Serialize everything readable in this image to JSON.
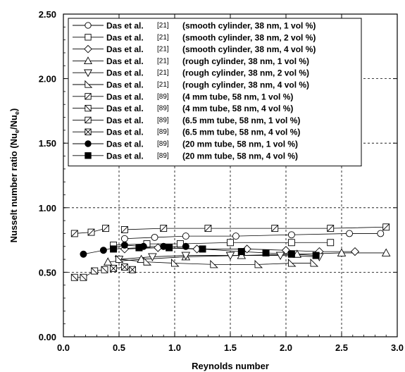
{
  "chart_data": {
    "type": "line",
    "xlabel": "Reynolds number",
    "ylabel": "Nusselt number ratio (Nu",
    "ylabel_sub1": "e",
    "ylabel_mid": "/Nu",
    "ylabel_sub2": "e",
    "ylabel_end": ")",
    "xlim": [
      0.0,
      3.0
    ],
    "ylim": [
      0.0,
      2.5
    ],
    "xticks": [
      "0.0",
      "0.5",
      "1.0",
      "1.5",
      "2.0",
      "2.5",
      "3.0"
    ],
    "yticks": [
      "0.00",
      "0.50",
      "1.00",
      "1.50",
      "2.00",
      "2.50"
    ],
    "grid": true,
    "legend_position": "top",
    "series": [
      {
        "author": "Das et al.",
        "ref": "[21]",
        "desc": "(smooth cylinder, 38 nm, 1 vol %)",
        "marker": "circle-open",
        "x": [
          0.55,
          0.82,
          1.1,
          1.55,
          2.05,
          2.57,
          2.85
        ],
        "y": [
          0.76,
          0.77,
          0.78,
          0.78,
          0.79,
          0.8,
          0.8
        ]
      },
      {
        "author": "Das et al.",
        "ref": "[21]",
        "desc": "(smooth cylinder, 38 nm, 2 vol %)",
        "marker": "square-open",
        "x": [
          0.45,
          0.75,
          1.05,
          1.5,
          2.05,
          2.4
        ],
        "y": [
          0.71,
          0.72,
          0.72,
          0.73,
          0.73,
          0.73
        ]
      },
      {
        "author": "Das et al.",
        "ref": "[21]",
        "desc": "(smooth cylinder, 38 nm, 4 vol %)",
        "marker": "diamond-open",
        "x": [
          0.55,
          0.85,
          1.2,
          1.65,
          2.0,
          2.3,
          2.62
        ],
        "y": [
          0.68,
          0.69,
          0.68,
          0.68,
          0.67,
          0.66,
          0.66
        ]
      },
      {
        "author": "Das et al.",
        "ref": "[21]",
        "desc": "(rough cylinder, 38 nm, 1 vol %)",
        "marker": "triangle-up-open",
        "x": [
          0.4,
          0.7,
          1.1,
          1.6,
          2.1,
          2.5,
          2.9
        ],
        "y": [
          0.58,
          0.6,
          0.62,
          0.63,
          0.64,
          0.65,
          0.65
        ]
      },
      {
        "author": "Das et al.",
        "ref": "[21]",
        "desc": "(rough cylinder, 38 nm, 2 vol %)",
        "marker": "triangle-down-open",
        "x": [
          0.5,
          0.8,
          1.1,
          1.5,
          1.95,
          2.3
        ],
        "y": [
          0.6,
          0.62,
          0.63,
          0.63,
          0.63,
          0.62
        ]
      },
      {
        "author": "Das et al.",
        "ref": "[21]",
        "desc": "(rough cylinder, 38 nm, 4 vol %)",
        "marker": "triangle-right-open",
        "x": [
          0.5,
          0.75,
          1.0,
          1.35,
          1.75,
          2.05,
          2.25
        ],
        "y": [
          0.6,
          0.58,
          0.57,
          0.56,
          0.56,
          0.57,
          0.57
        ]
      },
      {
        "author": "Das et al.",
        "ref": "[89]",
        "desc": "(4 mm tube, 58 nm, 1 vol %)",
        "marker": "square-slash",
        "x": [
          0.1,
          0.25,
          0.38
        ],
        "y": [
          0.8,
          0.81,
          0.84
        ]
      },
      {
        "author": "Das et al.",
        "ref": "[89]",
        "desc": "(4 mm tube, 58 nm, 4 vol %)",
        "marker": "square-backslash",
        "x": [
          0.1,
          0.18,
          0.28,
          0.37
        ],
        "y": [
          0.46,
          0.46,
          0.51,
          0.52
        ]
      },
      {
        "author": "Das et al.",
        "ref": "[89]",
        "desc": "(6.5 mm tube, 58 nm, 1 vol %)",
        "marker": "square-slash",
        "x": [
          0.55,
          0.9,
          1.3,
          1.9,
          2.4,
          2.9
        ],
        "y": [
          0.83,
          0.84,
          0.84,
          0.84,
          0.84,
          0.85
        ]
      },
      {
        "author": "Das et al.",
        "ref": "[89]",
        "desc": "(6.5 mm tube, 58 nm, 4 vol %)",
        "marker": "square-x",
        "x": [
          0.45,
          0.55,
          0.62
        ],
        "y": [
          0.53,
          0.54,
          0.52
        ]
      },
      {
        "author": "Das et al.",
        "ref": "[89]",
        "desc": "(20 mm tube, 58 nm, 1 vol %)",
        "marker": "circle-filled",
        "x": [
          0.18,
          0.36,
          0.55,
          0.72,
          0.9,
          1.1
        ],
        "y": [
          0.64,
          0.67,
          0.71,
          0.7,
          0.7,
          0.7
        ]
      },
      {
        "author": "Das et al.",
        "ref": "[89]",
        "desc": "(20 mm tube, 58 nm, 4 vol %)",
        "marker": "square-filled",
        "x": [
          0.45,
          0.68,
          0.95,
          1.25,
          1.6,
          1.82,
          2.05,
          2.27
        ],
        "y": [
          0.68,
          0.69,
          0.69,
          0.68,
          0.66,
          0.65,
          0.64,
          0.63
        ]
      }
    ]
  }
}
